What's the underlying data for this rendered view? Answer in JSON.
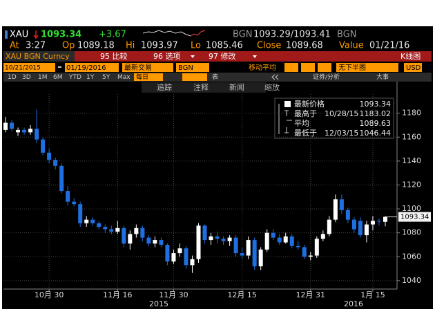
{
  "header": {
    "ticker": "XAU",
    "last": "1093.34",
    "change": "+3.67",
    "source_bid": "BGN",
    "bid_ask": "1093.29/1093.41",
    "source_ask": "BGN",
    "quote": [
      {
        "label": "At",
        "value": "3:27"
      },
      {
        "label": "Op",
        "value": "1089.18"
      },
      {
        "label": "Hi",
        "value": "1093.97"
      },
      {
        "label": "Lo",
        "value": "1085.46"
      },
      {
        "label": "Close",
        "value": "1089.68"
      },
      {
        "label": "Value",
        "value": "01/21/16"
      }
    ]
  },
  "toolbar": {
    "security": "XAU BGN Curncy",
    "compare": "95 比较",
    "options": "96 选项",
    "modify": "97 修改",
    "chart_type": "K线图",
    "start_date": "10/21/2015",
    "end_date": "01/19/2016",
    "price_field": "最新交易",
    "pricing_source": "BGN",
    "moving_average": "移动平均",
    "lower_chart": "无下半图",
    "currency": "USD",
    "periods": [
      "1D",
      "3D",
      "1M",
      "6M",
      "YTD",
      "1Y",
      "5Y",
      "Max"
    ],
    "frequency": "每日",
    "table": "表",
    "analysis": "证券/分析",
    "events": "大事",
    "tools": [
      "追踪",
      "注释",
      "新闻",
      "缩放"
    ]
  },
  "chart_data": {
    "type": "candlestick",
    "categories": [
      null,
      null,
      null,
      null,
      null,
      null,
      null,
      "10月 30",
      null,
      null,
      null,
      null,
      null,
      null,
      null,
      null,
      null,
      null,
      "11月 16",
      null,
      null,
      null,
      null,
      null,
      null,
      null,
      null,
      "11月 30",
      null,
      null,
      null,
      null,
      null,
      null,
      null,
      null,
      null,
      null,
      "12月 15",
      null,
      null,
      null,
      null,
      null,
      null,
      null,
      null,
      null,
      null,
      "12月 31",
      null,
      null,
      null,
      null,
      null,
      null,
      null,
      null,
      null,
      "1月 15",
      null,
      null
    ],
    "year_labels": [
      "2015",
      "2016"
    ],
    "open": [
      1166,
      1172,
      1164,
      1166,
      1164,
      1167,
      1158,
      1147,
      1141,
      1136,
      1115,
      1106,
      1104,
      1088,
      1091,
      1088,
      1085,
      1083,
      1081,
      1084,
      1071,
      1079,
      1084,
      1076,
      1071,
      1074,
      1070,
      1056,
      1063,
      1067,
      1053,
      1058,
      1086,
      1074,
      1077,
      1075,
      1073,
      1076,
      1063,
      1061,
      1074,
      1052,
      1066,
      1080,
      1076,
      1072,
      1077,
      1069,
      1068,
      1060,
      1061,
      1075,
      1079,
      1091,
      1108,
      1099,
      1091,
      1090,
      1078,
      1087,
      1090,
      1089.18
    ],
    "high": [
      1177,
      1174,
      1168,
      1168,
      1170,
      1183.02,
      1160,
      1150,
      1143,
      1138,
      1119,
      1109,
      1106,
      1094,
      1093,
      1090,
      1087,
      1086,
      1090,
      1086,
      1082,
      1087,
      1086,
      1078,
      1077,
      1076,
      1071,
      1066,
      1071,
      1069,
      1061,
      1088,
      1087,
      1080,
      1081,
      1077,
      1078,
      1078,
      1068,
      1077,
      1076,
      1068,
      1083,
      1083,
      1079,
      1080,
      1079,
      1073,
      1070,
      1064,
      1077,
      1082,
      1094,
      1112,
      1112,
      1101,
      1093,
      1093,
      1090,
      1094,
      1092,
      1093.97
    ],
    "low": [
      1164,
      1165,
      1161,
      1162,
      1162,
      1155,
      1145,
      1138,
      1133,
      1113,
      1103,
      1102,
      1085,
      1085,
      1086,
      1083,
      1080,
      1079,
      1079,
      1068,
      1066,
      1076,
      1073,
      1069,
      1068,
      1068,
      1053,
      1054,
      1060,
      1050,
      1046.44,
      1055,
      1071,
      1070,
      1071,
      1070,
      1069,
      1060,
      1058,
      1058,
      1049,
      1049,
      1064,
      1074,
      1070,
      1071,
      1067,
      1066,
      1058,
      1057,
      1059,
      1073,
      1077,
      1089,
      1096,
      1088,
      1080,
      1076,
      1072,
      1082,
      1086,
      1085.46
    ],
    "close": [
      1172,
      1167,
      1166,
      1164,
      1167,
      1158,
      1147,
      1141,
      1136,
      1115,
      1106,
      1104,
      1088,
      1091,
      1088,
      1085,
      1083,
      1081,
      1084,
      1071,
      1079,
      1084,
      1076,
      1071,
      1074,
      1070,
      1056,
      1063,
      1067,
      1053,
      1058,
      1086,
      1074,
      1077,
      1075,
      1073,
      1076,
      1063,
      1061,
      1074,
      1052,
      1066,
      1080,
      1076,
      1072,
      1077,
      1069,
      1068,
      1060,
      1061,
      1075,
      1079,
      1091,
      1108,
      1099,
      1091,
      1083,
      1078,
      1087,
      1090,
      1089.68,
      1093.34
    ],
    "up_color": "#ffffff",
    "down_color": "#1f6fe0",
    "ylim": [
      1033,
      1196
    ],
    "yticks": [
      1040,
      1060,
      1080,
      1100,
      1120,
      1140,
      1160,
      1180
    ],
    "grid": true,
    "last_price": 1093.34,
    "legend": [
      {
        "label": "最新价格",
        "value": 1093.34
      },
      {
        "label": "最高于",
        "date": "10/28/15",
        "value": 1183.02
      },
      {
        "label": "平均",
        "value": 1089.63
      },
      {
        "label": "最低于",
        "date": "12/03/15",
        "value": 1046.44
      }
    ]
  }
}
